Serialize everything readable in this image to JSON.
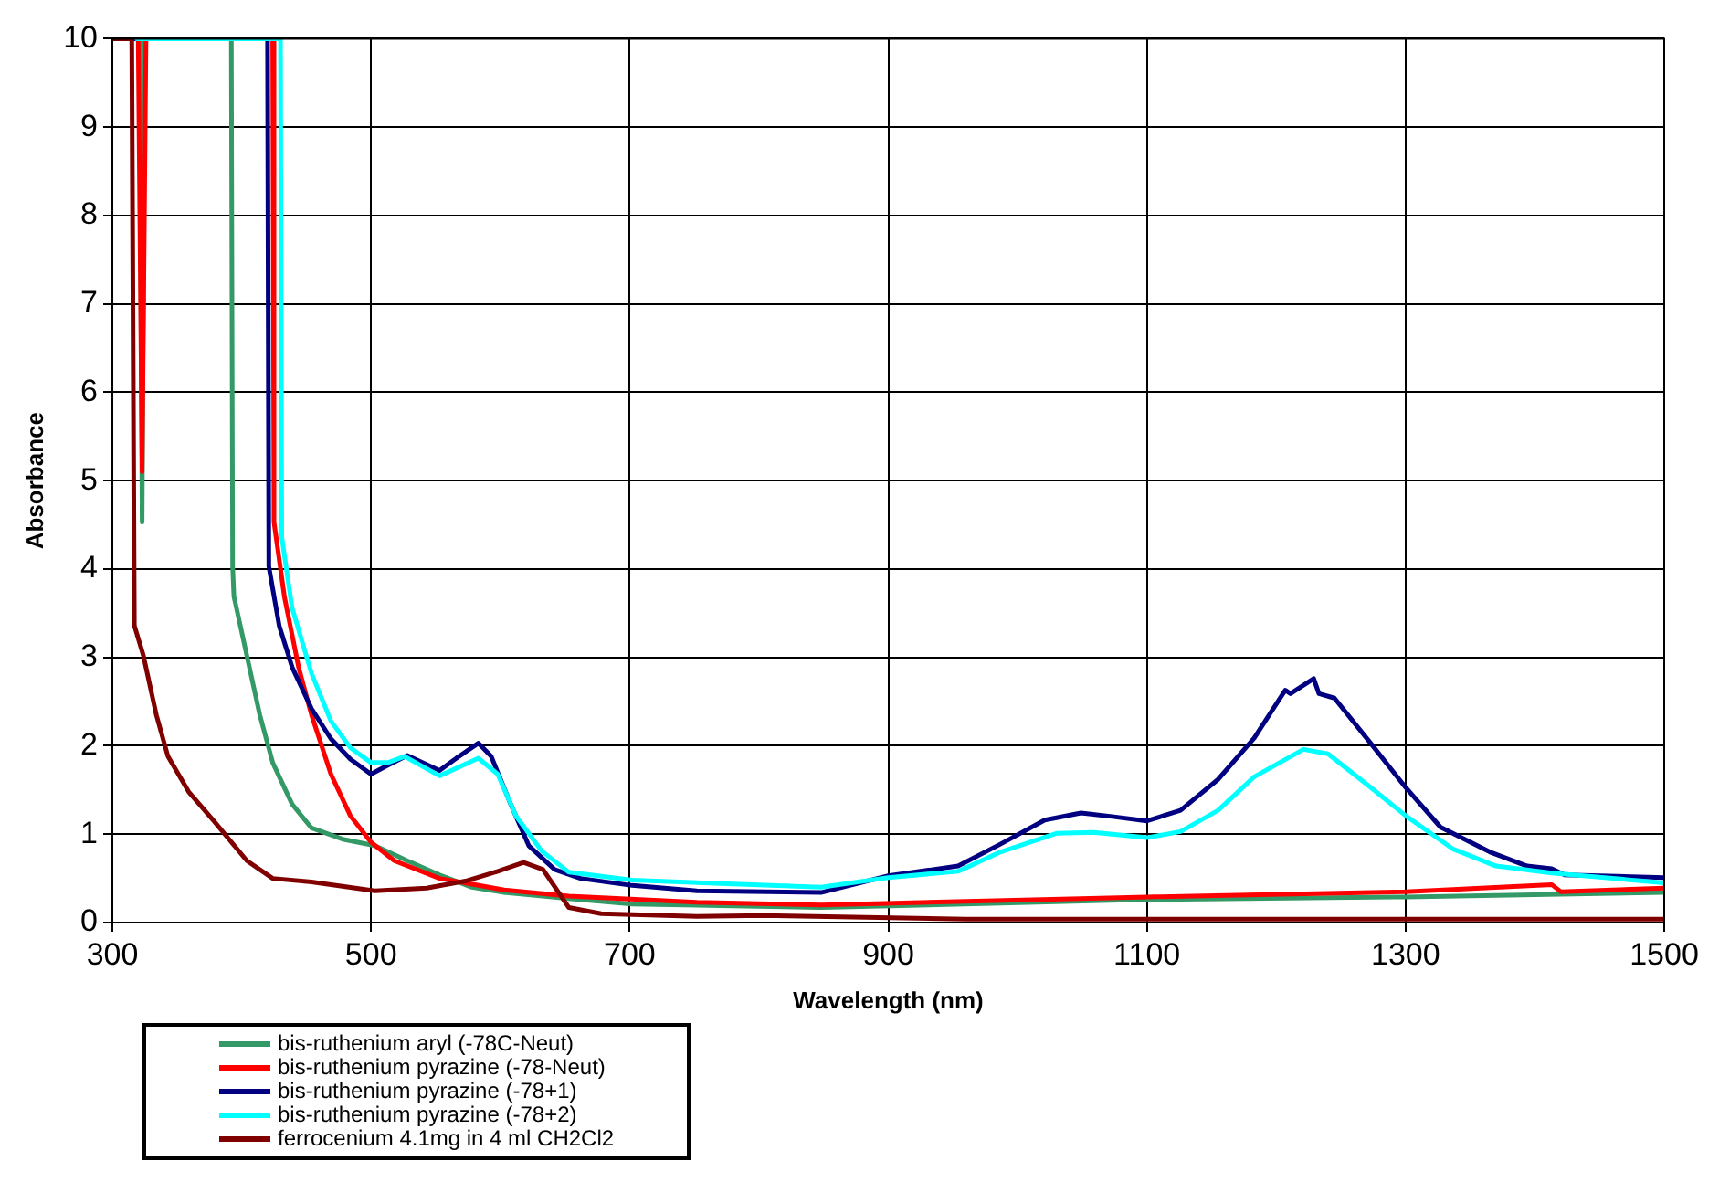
{
  "chart_data": {
    "type": "line",
    "xlabel": "Wavelength (nm)",
    "ylabel": "Absorbance",
    "xlim": [
      300,
      1500
    ],
    "xticks": [
      300,
      500,
      700,
      900,
      1100,
      1300,
      1500
    ],
    "ylim": [
      0,
      10
    ],
    "yticks": [
      0,
      1,
      2,
      3,
      4,
      5,
      6,
      7,
      8,
      9,
      10
    ],
    "grid": true,
    "legend": "bottom left",
    "marker": "none",
    "line_style": "solid",
    "series": [
      {
        "name": "bis-ruthenium aryl (-78C-Neut)",
        "color": "#339966",
        "x": [
          321,
          323,
          325,
          392,
          393,
          394,
          404,
          414,
          424,
          439,
          454,
          479,
          503,
          528,
          553,
          578,
          603,
          653,
          702,
          848,
          1100,
          1300,
          1500
        ],
        "values": [
          10,
          4.53,
          10,
          10,
          4.03,
          3.69,
          3.02,
          2.35,
          1.81,
          1.34,
          1.07,
          0.94,
          0.87,
          0.7,
          0.54,
          0.4,
          0.34,
          0.27,
          0.21,
          0.17,
          0.26,
          0.29,
          0.34
        ]
      },
      {
        "name": "bis-ruthenium pyrazine (-78-Neut)",
        "color": "#ff0000",
        "x": [
          320,
          323,
          326,
          424,
          425,
          433,
          444,
          454,
          469,
          484,
          500,
          518,
          553,
          603,
          653,
          752,
          848,
          1100,
          1300,
          1413,
          1420,
          1500
        ],
        "values": [
          10,
          5.1,
          10,
          10,
          4.53,
          3.69,
          2.89,
          2.35,
          1.68,
          1.21,
          0.91,
          0.7,
          0.5,
          0.37,
          0.3,
          0.23,
          0.2,
          0.29,
          0.35,
          0.43,
          0.35,
          0.39
        ]
      },
      {
        "name": "bis-ruthenium pyrazine (-78+1)",
        "color": "#000080",
        "x": [
          316,
          420,
          421,
          429,
          439,
          454,
          469,
          484,
          500,
          513,
          528,
          553,
          568,
          583,
          593,
          608,
          622,
          642,
          662,
          702,
          752,
          848,
          900,
          954,
          987,
          1021,
          1049,
          1073,
          1100,
          1126,
          1155,
          1183,
          1207,
          1211,
          1229,
          1233,
          1245,
          1273,
          1300,
          1327,
          1365,
          1394,
          1413,
          1423,
          1500
        ],
        "values": [
          10,
          10,
          4.03,
          3.36,
          2.89,
          2.42,
          2.08,
          1.85,
          1.68,
          1.78,
          1.89,
          1.72,
          1.88,
          2.03,
          1.88,
          1.34,
          0.87,
          0.6,
          0.5,
          0.42,
          0.36,
          0.34,
          0.53,
          0.64,
          0.89,
          1.16,
          1.24,
          1.2,
          1.15,
          1.27,
          1.62,
          2.09,
          2.63,
          2.59,
          2.76,
          2.59,
          2.54,
          2.03,
          1.53,
          1.08,
          0.8,
          0.64,
          0.61,
          0.54,
          0.51
        ]
      },
      {
        "name": "bis-ruthenium pyrazine (-78+2)",
        "color": "#00ffff",
        "x": [
          319,
          430,
          431,
          439,
          454,
          469,
          484,
          500,
          513,
          526,
          553,
          583,
          598,
          612,
          632,
          653,
          702,
          848,
          900,
          954,
          987,
          1030,
          1059,
          1100,
          1126,
          1155,
          1183,
          1221,
          1240,
          1273,
          1300,
          1337,
          1370,
          1413,
          1500
        ],
        "values": [
          10,
          10,
          4.36,
          3.56,
          2.82,
          2.28,
          1.98,
          1.81,
          1.81,
          1.88,
          1.66,
          1.86,
          1.68,
          1.21,
          0.81,
          0.57,
          0.48,
          0.4,
          0.51,
          0.58,
          0.8,
          1.01,
          1.02,
          0.96,
          1.03,
          1.27,
          1.65,
          1.96,
          1.91,
          1.53,
          1.21,
          0.83,
          0.64,
          0.56,
          0.45
        ]
      },
      {
        "name": "ferrocenium 4.1mg in 4 ml CH2Cl2",
        "color": "#800000",
        "x": [
          300,
          315,
          317,
          324,
          334,
          343,
          359,
          379,
          404,
          424,
          454,
          503,
          543,
          573,
          598,
          618,
          633,
          653,
          678,
          752,
          803,
          960,
          1500
        ],
        "values": [
          10,
          10,
          3.36,
          3.02,
          2.35,
          1.88,
          1.48,
          1.14,
          0.7,
          0.5,
          0.46,
          0.36,
          0.39,
          0.47,
          0.58,
          0.68,
          0.6,
          0.17,
          0.1,
          0.07,
          0.08,
          0.04,
          0.04
        ]
      }
    ]
  }
}
